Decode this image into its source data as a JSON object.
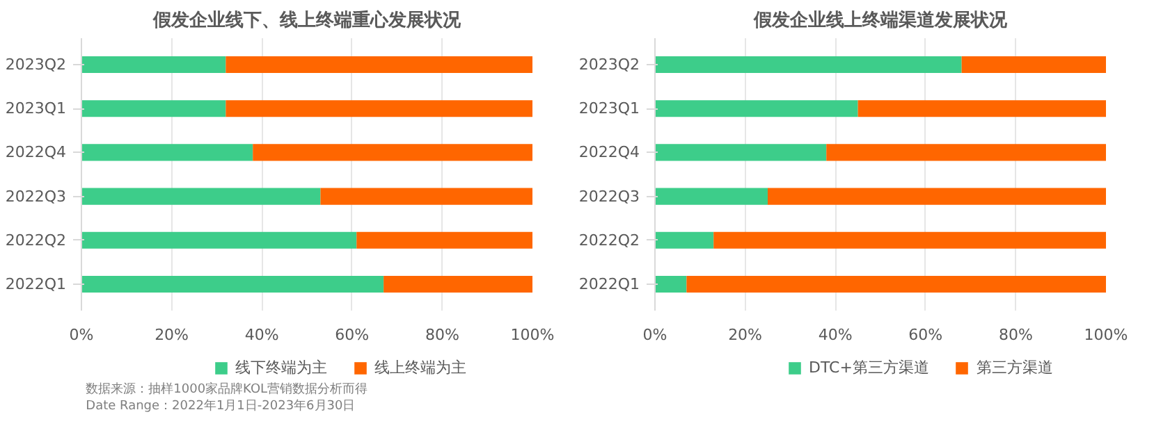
{
  "chart_data": [
    {
      "type": "bar",
      "title": "假发企业线下、线上终端重心发展状况",
      "orientation": "horizontal",
      "stacked": true,
      "categories": [
        "2023Q2",
        "2023Q1",
        "2022Q4",
        "2022Q3",
        "2022Q2",
        "2022Q1"
      ],
      "series": [
        {
          "name": "线下终端为主",
          "color": "#3dcd8a",
          "values": [
            32,
            32,
            38,
            53,
            61,
            67
          ]
        },
        {
          "name": "线上终端为主",
          "color": "#ff6600",
          "values": [
            68,
            68,
            62,
            47,
            39,
            33
          ]
        }
      ],
      "xlim": [
        0,
        100
      ],
      "xticks": [
        {
          "value": 0,
          "label": "0%"
        },
        {
          "value": 20,
          "label": "20%"
        },
        {
          "value": 40,
          "label": "40%"
        },
        {
          "value": 60,
          "label": "60%"
        },
        {
          "value": 80,
          "label": "80%"
        },
        {
          "value": 100,
          "label": "100%"
        }
      ],
      "grid": "x",
      "legend": "bottom",
      "annotations": [
        "数据来源：抽样1000家品牌KOL营销数据分析而得",
        "Date Range：2022年1月1日-2023年6月30日"
      ]
    },
    {
      "type": "bar",
      "title": "假发企业线上终端渠道发展状况",
      "orientation": "horizontal",
      "stacked": true,
      "categories": [
        "2023Q2",
        "2023Q1",
        "2022Q4",
        "2022Q3",
        "2022Q2",
        "2022Q1"
      ],
      "series": [
        {
          "name": "DTC+第三方渠道",
          "color": "#3dcd8a",
          "values": [
            68,
            45,
            38,
            25,
            13,
            7
          ]
        },
        {
          "name": "第三方渠道",
          "color": "#ff6600",
          "values": [
            32,
            55,
            62,
            75,
            87,
            93
          ]
        }
      ],
      "xlim": [
        0,
        100
      ],
      "xticks": [
        {
          "value": 0,
          "label": "0%"
        },
        {
          "value": 20,
          "label": "20%"
        },
        {
          "value": 40,
          "label": "40%"
        },
        {
          "value": 60,
          "label": "60%"
        },
        {
          "value": 80,
          "label": "80%"
        },
        {
          "value": 100,
          "label": "100%"
        }
      ],
      "grid": "x",
      "legend": "bottom"
    }
  ]
}
